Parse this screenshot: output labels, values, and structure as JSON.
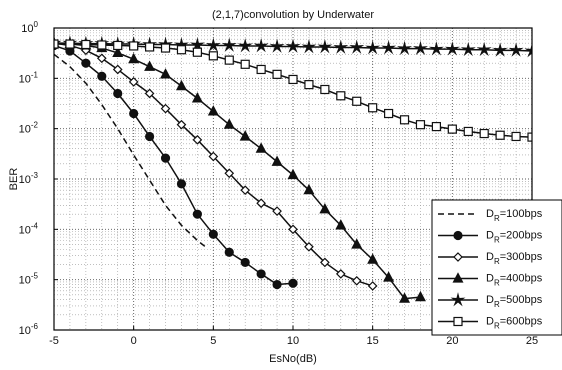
{
  "chart_data": {
    "type": "line",
    "title": "(2,1,7)convolution by Underwater",
    "xlabel": "EsNo(dB)",
    "ylabel": "BER",
    "xlim": [
      -5,
      25
    ],
    "ylim_log10": [
      -6,
      0
    ],
    "yscale": "log",
    "grid": true,
    "legend_position": "lower-right",
    "x_ticks": [
      "-5",
      "0",
      "5",
      "10",
      "15",
      "20",
      "25"
    ],
    "y_ticks": [
      {
        "base": "10",
        "exp": "0"
      },
      {
        "base": "10",
        "exp": "-1"
      },
      {
        "base": "10",
        "exp": "-2"
      },
      {
        "base": "10",
        "exp": "-3"
      },
      {
        "base": "10",
        "exp": "-4"
      },
      {
        "base": "10",
        "exp": "-5"
      },
      {
        "base": "10",
        "exp": "-6"
      }
    ],
    "series": [
      {
        "name": "DR=100bps",
        "label_main": "D",
        "label_sub": "R",
        "label_rest": "=100bps",
        "marker": "none",
        "dash": "6,4",
        "x": [
          -5,
          -4,
          -3,
          -2,
          -1,
          0,
          1,
          2,
          3,
          4,
          4.5
        ],
        "y": [
          0.3,
          0.17,
          0.08,
          0.03,
          0.01,
          0.003,
          0.00095,
          0.0003,
          0.00012,
          6e-05,
          4.5e-05
        ]
      },
      {
        "name": "DR=200bps",
        "label_main": "D",
        "label_sub": "R",
        "label_rest": "=200bps",
        "marker": "circle",
        "dash": "",
        "x": [
          -5,
          -4,
          -3,
          -2,
          -1,
          0,
          1,
          2,
          3,
          4,
          5,
          6,
          7,
          8,
          9,
          10
        ],
        "y": [
          0.45,
          0.35,
          0.2,
          0.11,
          0.05,
          0.02,
          0.007,
          0.0026,
          0.0008,
          0.0002,
          8e-05,
          3.5e-05,
          2.2e-05,
          1.3e-05,
          8e-06,
          8.5e-06
        ]
      },
      {
        "name": "DR=300bps",
        "label_main": "D",
        "label_sub": "R",
        "label_rest": "=300bps",
        "marker": "diamond",
        "dash": "",
        "x": [
          -5,
          -4,
          -3,
          -2,
          -1,
          0,
          1,
          2,
          3,
          4,
          5,
          6,
          7,
          8,
          9,
          10,
          11,
          12,
          13,
          14,
          15
        ],
        "y": [
          0.5,
          0.45,
          0.36,
          0.25,
          0.15,
          0.085,
          0.05,
          0.025,
          0.012,
          0.006,
          0.0028,
          0.0013,
          0.0006,
          0.00033,
          0.00023,
          0.0001,
          4.5e-05,
          2.2e-05,
          1.3e-05,
          9.5e-06,
          7.5e-06
        ]
      },
      {
        "name": "DR=400bps",
        "label_main": "D",
        "label_sub": "R",
        "label_rest": "=400bps",
        "marker": "triangle",
        "dash": "",
        "x": [
          -5,
          -4,
          -3,
          -2,
          -1,
          0,
          1,
          2,
          3,
          4,
          5,
          6,
          7,
          8,
          9,
          10,
          11,
          12,
          13,
          14,
          15,
          16,
          17,
          18
        ],
        "y": [
          0.5,
          0.48,
          0.45,
          0.4,
          0.32,
          0.24,
          0.17,
          0.12,
          0.07,
          0.04,
          0.022,
          0.012,
          0.007,
          0.004,
          0.0022,
          0.0012,
          0.0006,
          0.00025,
          0.00012,
          5e-05,
          2.5e-05,
          1.1e-05,
          4.2e-06,
          4.5e-06
        ]
      },
      {
        "name": "DR=500bps",
        "label_main": "D",
        "label_sub": "R",
        "label_rest": "=500bps",
        "marker": "star",
        "dash": "",
        "x": [
          -5,
          -4,
          -3,
          -2,
          -1,
          0,
          1,
          2,
          3,
          4,
          5,
          6,
          7,
          8,
          9,
          10,
          11,
          12,
          13,
          14,
          15,
          16,
          17,
          18,
          19,
          20,
          21,
          22,
          23,
          24,
          25
        ],
        "y": [
          0.5,
          0.5,
          0.49,
          0.49,
          0.48,
          0.48,
          0.47,
          0.47,
          0.46,
          0.46,
          0.45,
          0.45,
          0.44,
          0.44,
          0.43,
          0.43,
          0.42,
          0.42,
          0.41,
          0.41,
          0.4,
          0.4,
          0.39,
          0.39,
          0.38,
          0.38,
          0.37,
          0.37,
          0.36,
          0.36,
          0.35
        ]
      },
      {
        "name": "DR=600bps",
        "label_main": "D",
        "label_sub": "R",
        "label_rest": "=600bps",
        "marker": "square",
        "dash": "",
        "x": [
          -5,
          -4,
          -3,
          -2,
          -1,
          0,
          1,
          2,
          3,
          4,
          5,
          6,
          7,
          8,
          9,
          10,
          11,
          12,
          13,
          14,
          15,
          16,
          17,
          18,
          19,
          20,
          21,
          22,
          23,
          24,
          25
        ],
        "y": [
          0.48,
          0.48,
          0.47,
          0.46,
          0.45,
          0.44,
          0.42,
          0.4,
          0.37,
          0.33,
          0.28,
          0.23,
          0.19,
          0.15,
          0.12,
          0.095,
          0.075,
          0.06,
          0.045,
          0.035,
          0.026,
          0.02,
          0.015,
          0.012,
          0.011,
          0.0098,
          0.0088,
          0.008,
          0.0074,
          0.007,
          0.0068
        ]
      }
    ]
  }
}
